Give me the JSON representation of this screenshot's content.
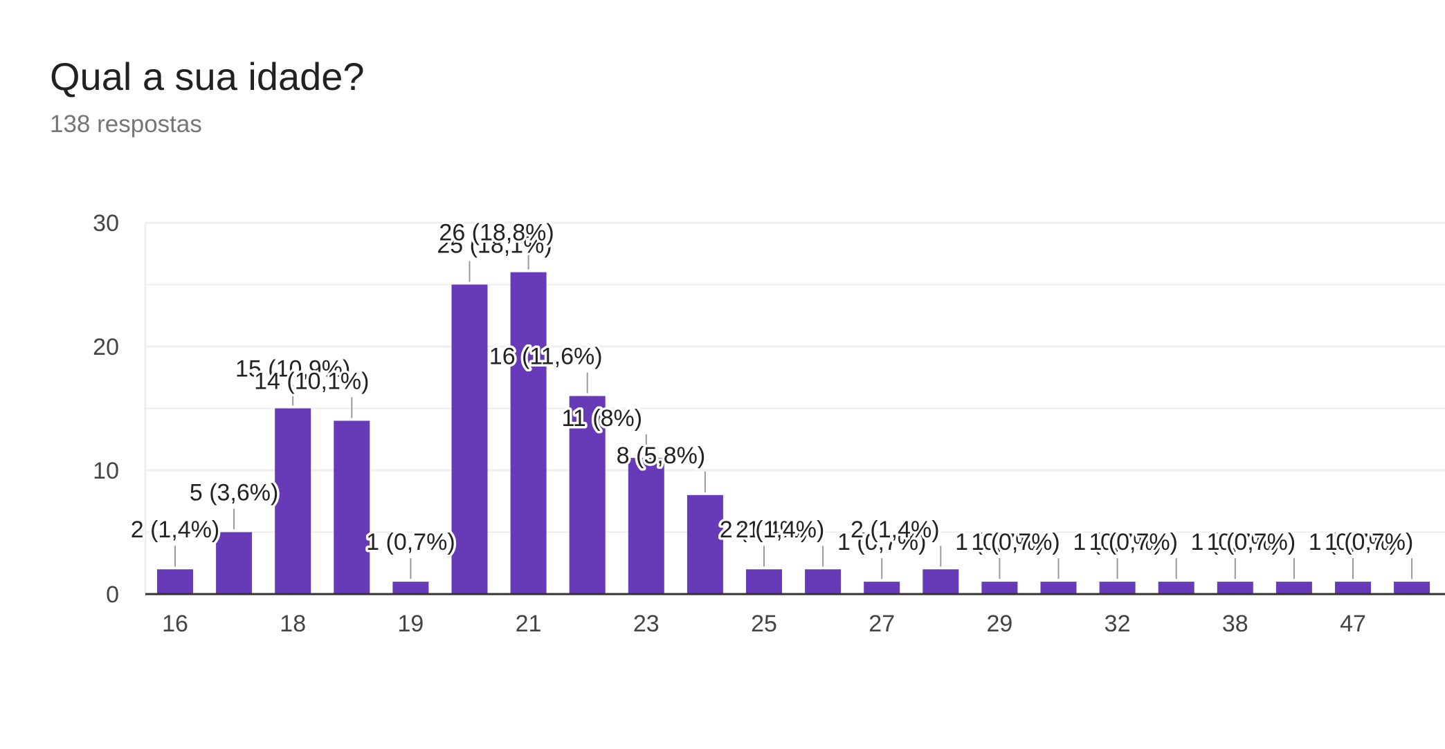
{
  "header": {
    "title": "Qual a sua idade?",
    "subtitle": "138 respostas"
  },
  "colors": {
    "bar": "#673ab7",
    "grid": "#eeeeee",
    "axis": "#333333",
    "leader": "#999999"
  },
  "chart_data": {
    "type": "bar",
    "title": "Qual a sua idade?",
    "subtitle": "138 respostas",
    "ylim": [
      0,
      30
    ],
    "yticks": [
      0,
      10,
      20,
      30
    ],
    "grid": true,
    "legend": "none",
    "bars": [
      {
        "x_label": "16",
        "value": 2,
        "label": "2 (1,4%)"
      },
      {
        "x_label": "",
        "value": 5,
        "label": "5 (3,6%)"
      },
      {
        "x_label": "18",
        "value": 15,
        "label": "15 (10,9%)"
      },
      {
        "x_label": "",
        "value": 14,
        "label": "14 (10,1%)"
      },
      {
        "x_label": "19",
        "value": 1,
        "label": "1 (0,7%)"
      },
      {
        "x_label": "",
        "value": 25,
        "label": "25 (18,1%)"
      },
      {
        "x_label": "21",
        "value": 26,
        "label": "26 (18,8%)"
      },
      {
        "x_label": "",
        "value": 16,
        "label": "16 (11,6%)"
      },
      {
        "x_label": "23",
        "value": 11,
        "label": "11 (8%)"
      },
      {
        "x_label": "",
        "value": 8,
        "label": "8 (5,8%)"
      },
      {
        "x_label": "25",
        "value": 2,
        "label": "2 (1,4%)"
      },
      {
        "x_label": "",
        "value": 2,
        "label": "2 (1,4%)"
      },
      {
        "x_label": "27",
        "value": 1,
        "label": "1 (0,7%)"
      },
      {
        "x_label": "",
        "value": 2,
        "label": "2 (1,4%)"
      },
      {
        "x_label": "29",
        "value": 1,
        "label": "1 (0,7%)"
      },
      {
        "x_label": "",
        "value": 1,
        "label": "1 (0,7%)"
      },
      {
        "x_label": "32",
        "value": 1,
        "label": "1 (0,7%)"
      },
      {
        "x_label": "",
        "value": 1,
        "label": "1 (0,7%)"
      },
      {
        "x_label": "38",
        "value": 1,
        "label": "1 (0,7%)"
      },
      {
        "x_label": "",
        "value": 1,
        "label": "1 (0,7%)"
      },
      {
        "x_label": "47",
        "value": 1,
        "label": "1 (0,7%)"
      },
      {
        "x_label": "",
        "value": 1,
        "label": "1 (0,7%)"
      }
    ]
  }
}
